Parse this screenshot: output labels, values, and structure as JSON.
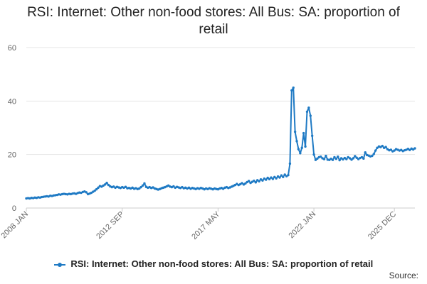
{
  "colors": {
    "series": "#1f7ac4",
    "grid": "#e6e6e6",
    "axis_text": "#666666"
  },
  "footer": {
    "source_label": "Source:"
  },
  "chart_data": {
    "type": "line",
    "title": "RSI: Internet: Other non-food stores: All Bus: SA: proportion of retail",
    "xlabel": "",
    "ylabel": "",
    "ylim": [
      0,
      60
    ],
    "yticks": [
      0,
      20,
      40,
      60
    ],
    "grid": true,
    "legend_position": "bottom",
    "x_tick_labels": [
      "2008 JAN",
      "2012 SEP",
      "2017 MAY",
      "2022 JAN",
      "2025 DEC"
    ],
    "x_tick_index": [
      0,
      56,
      112,
      168,
      215
    ],
    "series": [
      {
        "name": "RSI: Internet: Other non-food stores: All Bus: SA: proportion of retail",
        "marker": "circle",
        "start": "2008 JAN",
        "frequency": "monthly",
        "values": [
          3.6,
          3.7,
          3.6,
          3.8,
          3.7,
          3.9,
          3.8,
          4.0,
          3.9,
          4.1,
          4.2,
          4.3,
          4.4,
          4.3,
          4.6,
          4.5,
          4.7,
          4.8,
          4.9,
          5.1,
          5.0,
          5.2,
          5.3,
          5.2,
          5.1,
          5.3,
          5.2,
          5.4,
          5.5,
          5.3,
          5.6,
          5.8,
          5.7,
          6.0,
          6.2,
          5.9,
          5.2,
          5.4,
          5.7,
          6.1,
          6.5,
          7.0,
          7.6,
          8.2,
          8.0,
          8.4,
          8.8,
          9.4,
          8.6,
          8.1,
          7.8,
          8.0,
          7.6,
          7.9,
          7.7,
          7.5,
          7.8,
          7.6,
          7.9,
          7.4,
          7.5,
          7.3,
          7.6,
          7.2,
          7.4,
          7.1,
          7.3,
          7.8,
          8.4,
          9.2,
          7.9,
          7.6,
          7.8,
          7.5,
          7.7,
          7.3,
          7.1,
          6.9,
          7.1,
          7.4,
          7.6,
          7.8,
          8.1,
          8.4,
          8.0,
          7.8,
          8.1,
          7.6,
          7.9,
          7.7,
          7.5,
          7.8,
          7.4,
          7.6,
          7.3,
          7.6,
          7.2,
          7.5,
          7.3,
          7.1,
          7.4,
          7.2,
          7.5,
          7.3,
          7.0,
          7.3,
          7.1,
          7.4,
          7.2,
          7.0,
          7.3,
          7.1,
          7.0,
          7.3,
          7.5,
          7.2,
          7.6,
          7.8,
          7.5,
          7.7,
          8.0,
          8.3,
          8.6,
          9.0,
          8.6,
          8.9,
          9.3,
          8.8,
          9.2,
          9.7,
          10.1,
          9.4,
          9.8,
          10.2,
          9.6,
          10.4,
          10.0,
          10.7,
          10.3,
          11.0,
          10.6,
          11.3,
          10.8,
          11.4,
          10.9,
          11.6,
          11.1,
          11.8,
          11.4,
          12.2,
          11.6,
          12.5,
          11.9,
          12.3,
          16.6,
          44.0,
          45.0,
          28.5,
          25.0,
          22.0,
          20.5,
          22.5,
          28.0,
          23.0,
          36.0,
          37.5,
          34.5,
          27.0,
          20.0,
          18.0,
          18.5,
          19.0,
          19.2,
          18.6,
          18.3,
          19.5,
          18.1,
          18.0,
          18.4,
          18.0,
          19.0,
          18.4,
          19.2,
          17.9,
          18.6,
          18.2,
          18.7,
          18.3,
          19.0,
          18.6,
          18.1,
          18.6,
          19.4,
          18.8,
          18.3,
          18.7,
          19.0,
          18.5,
          20.8,
          19.8,
          19.6,
          19.3,
          19.5,
          20.2,
          21.5,
          22.5,
          23.0,
          22.8,
          23.2,
          22.5,
          22.8,
          22.0,
          21.6,
          21.8,
          21.2,
          21.5,
          22.0,
          21.8,
          21.5,
          21.7,
          21.3,
          21.6,
          21.8,
          22.1,
          21.7,
          22.2,
          21.9,
          22.3
        ]
      }
    ]
  }
}
